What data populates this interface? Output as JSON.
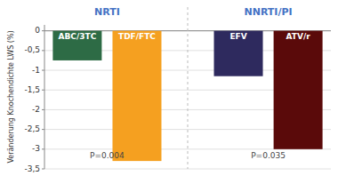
{
  "chart_data": {
    "type": "bar",
    "y_label": "Veränderung Knochendichte LWS (%)",
    "categories": [
      "ABC/3TC",
      "TDF/FTC",
      "EFV",
      "ATV/r"
    ],
    "values": [
      -0.75,
      -3.3,
      -1.15,
      -3.0
    ],
    "colors": [
      "#2d6b45",
      "#f5a020",
      "#2e2a5e",
      "#5a0a0a"
    ],
    "ylim": [
      -3.5,
      0.15
    ],
    "yticks": [
      0,
      {
        "value": -0.5,
        "label": "-0,5"
      },
      -1,
      {
        "value": -1.5,
        "label": "-1,5"
      },
      -2,
      {
        "value": -2.5,
        "label": "-2,5"
      },
      -3,
      {
        "value": -3.5,
        "label": "-3,5"
      }
    ],
    "grid": true,
    "annotations": [
      {
        "text": "NRTI"
      },
      {
        "text": "NNRTI/PI"
      },
      {
        "text": "P=0.004",
        "y": -3.28
      },
      {
        "text": "P=0.035",
        "y": -3.28
      }
    ]
  }
}
